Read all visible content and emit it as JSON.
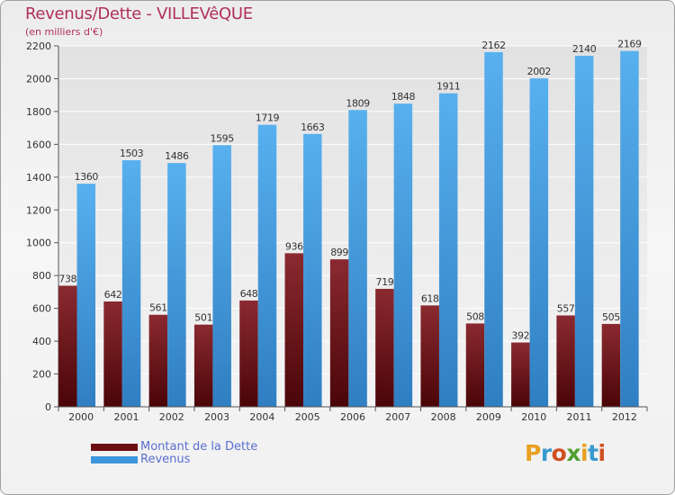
{
  "title": "Revenus/Dette - VILLEVêQUE",
  "subtitle": "(en milliers d'€)",
  "brand": {
    "text": "Proxiti",
    "letter_colors": [
      "#e8a020",
      "#3a9ad0",
      "#d05020",
      "#50a030",
      "#e8a020",
      "#3a9ad0",
      "#d05020"
    ]
  },
  "legend": [
    {
      "label": "Montant de la Dette",
      "color": "#6b0e12"
    },
    {
      "label": "Revenus",
      "color": "#3d95db"
    }
  ],
  "chart_data": {
    "type": "bar",
    "title": "Revenus/Dette - VILLEVêQUE",
    "subtitle": "(en milliers d'€)",
    "categories": [
      "2000",
      "2001",
      "2002",
      "2003",
      "2004",
      "2005",
      "2006",
      "2007",
      "2008",
      "2009",
      "2010",
      "2011",
      "2012"
    ],
    "series": [
      {
        "name": "Montant de la Dette",
        "values": [
          738,
          642,
          561,
          501,
          648,
          936,
          899,
          719,
          618,
          508,
          392,
          557,
          505
        ],
        "color": "#6b0e12"
      },
      {
        "name": "Revenus",
        "values": [
          1360,
          1503,
          1486,
          1595,
          1719,
          1663,
          1809,
          1848,
          1911,
          2162,
          2002,
          2140,
          2169
        ],
        "color": "#3d95db"
      }
    ],
    "ylim": [
      0,
      2200
    ],
    "yticks": [
      0,
      200,
      400,
      600,
      800,
      1000,
      1200,
      1400,
      1600,
      1800,
      2000,
      2200
    ],
    "grid": true,
    "legend_position": "bottom-left"
  }
}
